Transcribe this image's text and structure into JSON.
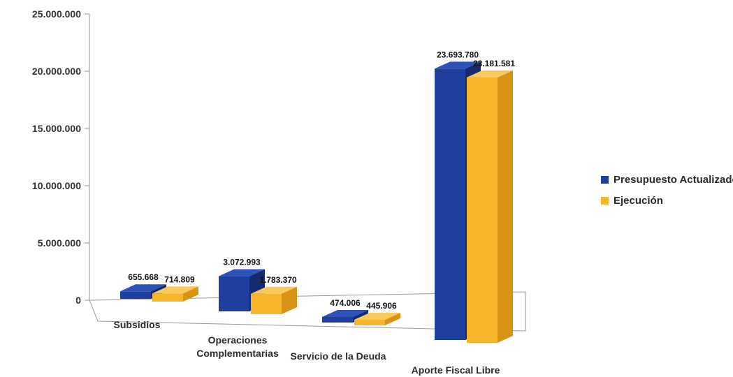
{
  "chart_data": {
    "type": "bar",
    "title": "",
    "xlabel": "",
    "ylabel": "",
    "categories": [
      "Subsidios",
      "Operaciones Complementarias",
      "Servicio de la Deuda",
      "Aporte Fiscal Libre"
    ],
    "category_lines": [
      [
        "Subsidios"
      ],
      [
        "Operaciones",
        "Complementarias"
      ],
      [
        "Servicio de la Deuda"
      ],
      [
        "Aporte Fiscal Libre"
      ]
    ],
    "series": [
      {
        "name": "Presupuesto Actualizado",
        "values": [
          655668,
          3072993,
          474006,
          23693780
        ],
        "labels": [
          "655.668",
          "3.072.993",
          "474.006",
          "23.693.780"
        ]
      },
      {
        "name": "Ejecución",
        "values": [
          714809,
          1783370,
          445906,
          23181581
        ],
        "labels": [
          "714.809",
          "1.783.370",
          "445.906",
          "23.181.581"
        ]
      }
    ],
    "ylim": [
      0,
      25000000
    ],
    "yticks": [
      0,
      5000000,
      10000000,
      15000000,
      20000000,
      25000000
    ],
    "ytick_labels": [
      "0",
      "5.000.000",
      "10.000.000",
      "15.000.000",
      "20.000.000",
      "25.000.000"
    ],
    "grid": false,
    "legend_position": "right",
    "style": "3d-clustered",
    "colors": {
      "series0": {
        "front": "#1f3f9e",
        "side": "#142b70",
        "top": "#2e52b8"
      },
      "series1": {
        "front": "#f7b52c",
        "side": "#d89314",
        "top": "#fbc95a"
      },
      "axis": "#9a9a9a"
    }
  }
}
